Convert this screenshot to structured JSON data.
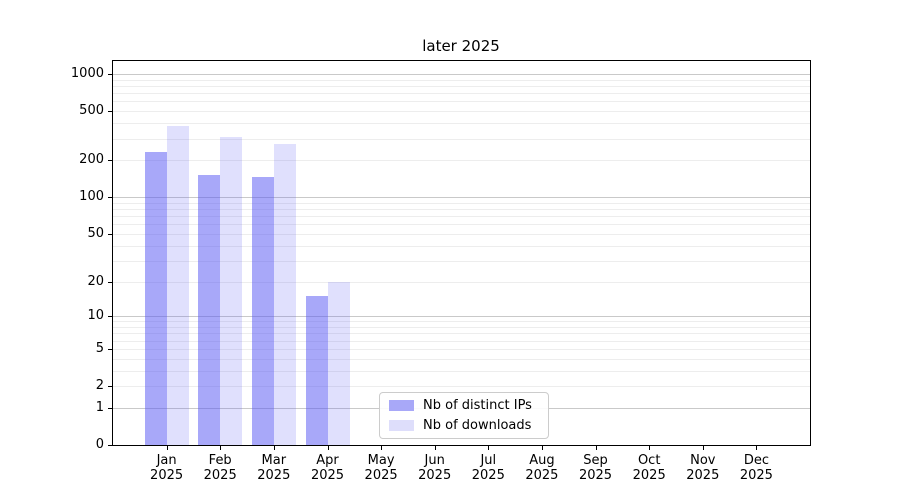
{
  "title": "later 2025",
  "chart_data": {
    "type": "bar",
    "title": "later 2025",
    "categories": [
      "Jan 2025",
      "Feb 2025",
      "Mar 2025",
      "Apr 2025",
      "May 2025",
      "Jun 2025",
      "Jul 2025",
      "Aug 2025",
      "Sep 2025",
      "Oct 2025",
      "Nov 2025",
      "Dec 2025"
    ],
    "series": [
      {
        "name": "Nb of distinct IPs",
        "color": "#a8a8f8",
        "fill": "rgba(88,88,244,0.52)",
        "values": [
          233,
          151,
          147,
          15,
          0,
          0,
          0,
          0,
          0,
          0,
          0,
          0
        ]
      },
      {
        "name": "Nb of downloads",
        "color": "#dedefb",
        "fill": "rgba(88,88,244,0.19)",
        "values": [
          377,
          309,
          269,
          20,
          0,
          0,
          0,
          0,
          0,
          0,
          0,
          0
        ]
      }
    ],
    "xlabel": "",
    "ylabel": "",
    "yscale": "log1p",
    "yticks": [
      0,
      1,
      2,
      5,
      10,
      20,
      50,
      100,
      200,
      500,
      1000
    ],
    "ylim": [
      0,
      1277
    ],
    "grid": {
      "major": [
        1,
        10,
        100,
        1000
      ],
      "minor": [
        2,
        3,
        4,
        5,
        6,
        7,
        8,
        9,
        20,
        30,
        40,
        50,
        60,
        70,
        80,
        90,
        200,
        300,
        400,
        500,
        600,
        700,
        800,
        900
      ],
      "major_color": "#c9c9c9",
      "minor_color": "#ededed"
    },
    "legend_position": "inside lower-center-left",
    "bar_mode": "grouped"
  }
}
